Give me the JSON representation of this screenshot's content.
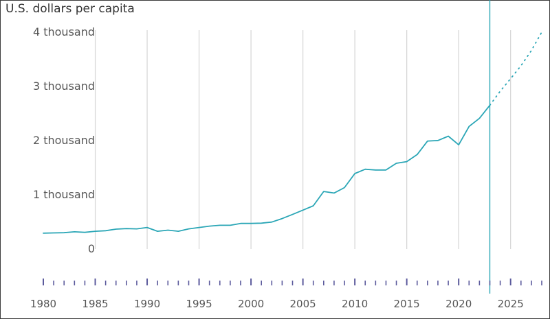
{
  "chart_data": {
    "type": "line",
    "ylabel": "U.S. dollars per capita",
    "xlabel": "",
    "xlim": [
      1980,
      2028
    ],
    "ylim": [
      0,
      4000
    ],
    "y_ticks": [
      {
        "value": 0,
        "label": "0"
      },
      {
        "value": 1000,
        "label": "1 thousand"
      },
      {
        "value": 2000,
        "label": "2 thousand"
      },
      {
        "value": 3000,
        "label": "3 thousand"
      },
      {
        "value": 4000,
        "label": "4 thousand"
      }
    ],
    "x_ticks": [
      1980,
      1985,
      1990,
      1995,
      2000,
      2005,
      2010,
      2015,
      2020,
      2025
    ],
    "grid": "vertical",
    "marker_year": 2023,
    "series": [
      {
        "style": "solid",
        "color": "#2aa6b6",
        "x": [
          1980,
          1981,
          1982,
          1983,
          1984,
          1985,
          1986,
          1987,
          1988,
          1989,
          1990,
          1991,
          1992,
          1993,
          1994,
          1995,
          1996,
          1997,
          1998,
          1999,
          2000,
          2001,
          2002,
          2003,
          2004,
          2005,
          2006,
          2007,
          2008,
          2009,
          2010,
          2011,
          2012,
          2013,
          2014,
          2015,
          2016,
          2017,
          2018,
          2019,
          2020,
          2021,
          2022,
          2023
        ],
        "y": [
          280,
          285,
          288,
          305,
          295,
          315,
          325,
          355,
          365,
          360,
          385,
          315,
          335,
          315,
          360,
          385,
          410,
          425,
          425,
          460,
          460,
          465,
          485,
          550,
          625,
          705,
          785,
          1050,
          1020,
          1120,
          1380,
          1460,
          1445,
          1445,
          1570,
          1600,
          1730,
          1980,
          1990,
          2070,
          1910,
          2250,
          2400,
          2640
        ]
      },
      {
        "style": "dotted",
        "color": "#2aa6b6",
        "x": [
          2023,
          2024,
          2025,
          2026,
          2027,
          2028
        ],
        "y": [
          2640,
          2900,
          3130,
          3370,
          3650,
          3990
        ]
      }
    ]
  }
}
